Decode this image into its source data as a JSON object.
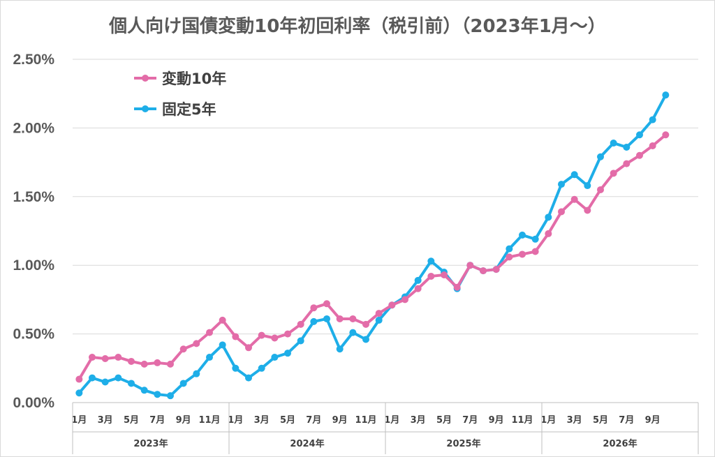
{
  "chart_data": {
    "type": "line",
    "title": "個人向け国債変動10年初回利率（税引前）（2023年1月～）",
    "ylim": [
      0,
      2.5
    ],
    "yticks": [
      0,
      0.5,
      1.0,
      1.5,
      2.0,
      2.5
    ],
    "ytick_labels": [
      "0.00%",
      "0.50%",
      "1.00%",
      "1.50%",
      "2.00%",
      "2.50%"
    ],
    "grid": true,
    "legend_position": "top-left",
    "x_month_labels": [
      "1月",
      "3月",
      "5月",
      "7月",
      "9月",
      "11月",
      "1月",
      "3月",
      "5月",
      "7月",
      "9月",
      "11月",
      "1月",
      "3月",
      "5月",
      "7月",
      "9月",
      "11月",
      "1月",
      "3月",
      "5月",
      "7月",
      "9月"
    ],
    "years": [
      "2023年",
      "2024年",
      "2025年",
      "2026年"
    ],
    "series": [
      {
        "name": "変動10年",
        "color": "#e36ca8",
        "values": [
          0.17,
          0.33,
          0.32,
          0.33,
          0.3,
          0.28,
          0.29,
          0.28,
          0.39,
          0.43,
          0.51,
          0.6,
          0.48,
          0.4,
          0.49,
          0.47,
          0.5,
          0.57,
          0.69,
          0.72,
          0.61,
          0.61,
          0.57,
          0.65,
          0.71,
          0.75,
          0.83,
          0.92,
          0.93,
          0.84,
          1.0,
          0.96,
          0.97,
          1.06,
          1.08,
          1.1,
          1.23,
          1.39,
          1.48,
          1.4,
          1.55,
          1.67,
          1.74,
          1.8,
          1.87,
          1.95
        ]
      },
      {
        "name": "固定5年",
        "color": "#1eaee8",
        "values": [
          0.07,
          0.18,
          0.15,
          0.18,
          0.14,
          0.09,
          0.06,
          0.05,
          0.14,
          0.21,
          0.33,
          0.42,
          0.25,
          0.18,
          0.25,
          0.33,
          0.36,
          0.45,
          0.59,
          0.61,
          0.39,
          0.51,
          0.46,
          0.6,
          0.71,
          0.77,
          0.89,
          1.03,
          0.95,
          0.83,
          1.0,
          0.96,
          0.97,
          1.12,
          1.22,
          1.19,
          1.35,
          1.59,
          1.66,
          1.58,
          1.79,
          1.89,
          1.86,
          1.95,
          2.06,
          2.24
        ]
      }
    ]
  }
}
